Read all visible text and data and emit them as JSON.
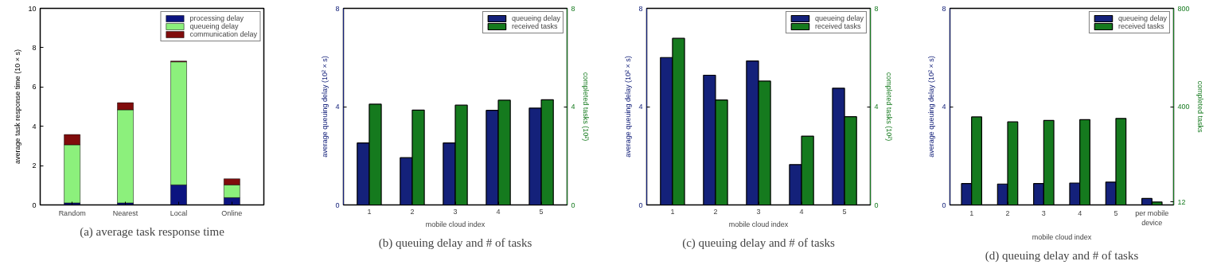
{
  "chart_data": [
    {
      "type": "bar",
      "stacked": true,
      "categories": [
        "Random",
        "Nearest",
        "Local",
        "Online"
      ],
      "ylabel": "average task response time (10 × s)",
      "ylim": [
        0,
        10
      ],
      "yticks": [
        0,
        2,
        4,
        6,
        8,
        10
      ],
      "grid": false,
      "legend": "top right",
      "annotations": [
        "(a) average task response time"
      ],
      "series": [
        {
          "name": "processing delay",
          "color": "#0c1480",
          "values": [
            0.1,
            0.1,
            1.02,
            0.37
          ]
        },
        {
          "name": "queueing delay",
          "color": "#8cf07c",
          "values": [
            2.96,
            4.74,
            6.26,
            0.65
          ]
        },
        {
          "name": "communication delay",
          "color": "#800c0c",
          "values": [
            0.52,
            0.36,
            0.04,
            0.31
          ]
        }
      ]
    },
    {
      "type": "bar",
      "categories": [
        "1",
        "2",
        "3",
        "4",
        "5"
      ],
      "xlabel": "mobile cloud index",
      "ylabel": "average queuing delay (10² × s)",
      "y2label": "completed tasks (10²)",
      "ylim": [
        0,
        8
      ],
      "yticks": [
        0,
        4,
        8
      ],
      "y2lim": [
        0,
        8
      ],
      "y2ticks": [
        0,
        4,
        8
      ],
      "grid": false,
      "legend": "top right",
      "annotations": [
        "(b) queuing delay and # of tasks"
      ],
      "series": [
        {
          "name": "queueing delay",
          "color": "#14217a",
          "values": [
            2.52,
            1.92,
            2.52,
            3.85,
            3.94
          ]
        },
        {
          "name": "received tasks",
          "color": "#157a1e",
          "axis": "y2",
          "values": [
            4.1,
            3.86,
            4.06,
            4.26,
            4.28
          ]
        }
      ]
    },
    {
      "type": "bar",
      "categories": [
        "1",
        "2",
        "3",
        "4",
        "5"
      ],
      "xlabel": "mobile cloud index",
      "ylabel": "average queuing delay (10² × s)",
      "y2label": "completed tasks (10²)",
      "ylim": [
        0,
        8
      ],
      "yticks": [
        0,
        4,
        8
      ],
      "y2lim": [
        0,
        8
      ],
      "y2ticks": [
        0,
        4,
        8
      ],
      "grid": false,
      "legend": "top right",
      "annotations": [
        "(c) queuing delay and # of tasks"
      ],
      "series": [
        {
          "name": "queueing delay",
          "color": "#14217a",
          "values": [
            6.0,
            5.28,
            5.86,
            1.64,
            4.75
          ]
        },
        {
          "name": "received tasks",
          "color": "#157a1e",
          "axis": "y2",
          "values": [
            6.78,
            4.27,
            5.04,
            2.8,
            3.59
          ]
        }
      ]
    },
    {
      "type": "bar",
      "categories": [
        "1",
        "2",
        "3",
        "4",
        "5",
        "per mobile device"
      ],
      "xlabel": "mobile cloud index",
      "ylabel": "average queuing delay (10² × s)",
      "y2label": "completed tasks",
      "ylim": [
        0,
        8
      ],
      "yticks": [
        0,
        4,
        8
      ],
      "y2lim": [
        0,
        800
      ],
      "y2ticks": [
        12,
        400,
        800
      ],
      "grid": false,
      "legend": "top right",
      "annotations": [
        "(d) queuing delay and # of tasks"
      ],
      "series": [
        {
          "name": "queueing delay",
          "color": "#14217a",
          "values": [
            0.87,
            0.85,
            0.87,
            0.89,
            0.93,
            0.26
          ]
        },
        {
          "name": "received tasks",
          "color": "#157a1e",
          "axis": "y2",
          "values": [
            358,
            338,
            344,
            347,
            352,
            12
          ]
        }
      ]
    }
  ]
}
